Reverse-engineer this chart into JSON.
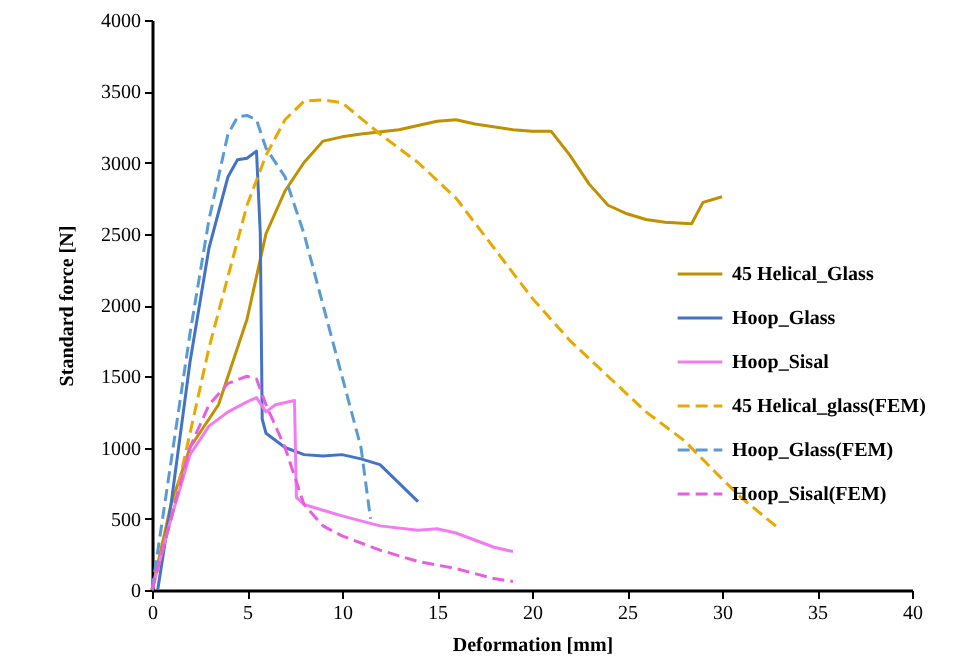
{
  "chart_data": {
    "type": "line",
    "xlabel": "Deformation [mm]",
    "ylabel": "Standard force [N]",
    "xlim": [
      0,
      40
    ],
    "xticks": [
      0,
      5,
      10,
      15,
      20,
      25,
      30,
      35,
      40
    ],
    "ylim": [
      0,
      4000
    ],
    "yticks": [
      0,
      500,
      1000,
      1500,
      2000,
      2500,
      3000,
      3500,
      4000
    ],
    "grid": false,
    "legend": "right",
    "series": [
      {
        "name": "45 Helical_Glass",
        "color": "#bf9000",
        "line_style": "solid",
        "x": [
          0,
          1,
          2,
          3,
          3.5,
          4,
          5,
          5.5,
          6,
          7,
          8,
          9,
          10,
          11,
          13,
          15,
          16,
          17,
          19,
          20,
          21,
          22,
          23,
          24,
          25,
          26,
          27,
          28.4,
          29,
          30
        ],
        "values": [
          0,
          600,
          1000,
          1200,
          1300,
          1500,
          1900,
          2200,
          2500,
          2800,
          3000,
          3150,
          3180,
          3200,
          3230,
          3290,
          3300,
          3270,
          3230,
          3220,
          3220,
          3050,
          2850,
          2700,
          2640,
          2600,
          2580,
          2570,
          2720,
          2760
        ]
      },
      {
        "name": "Hoop_Glass",
        "color": "#4472c4",
        "line_style": "solid",
        "x": [
          0.3,
          1,
          2,
          3,
          4,
          4.5,
          5,
          5.5,
          5.7,
          5.8,
          6,
          7,
          8,
          9,
          10,
          11,
          12,
          13,
          14
        ],
        "values": [
          0,
          600,
          1600,
          2400,
          2900,
          3020,
          3030,
          3080,
          2500,
          1200,
          1100,
          1000,
          950,
          940,
          950,
          920,
          880,
          750,
          620
        ]
      },
      {
        "name": "Hoop_Sisal",
        "color": "#f07cf0",
        "line_style": "solid",
        "x": [
          0,
          1,
          2,
          3,
          4,
          5,
          5.5,
          6,
          6.5,
          7.5,
          7.6,
          8,
          9,
          10,
          12,
          14,
          15,
          16,
          18,
          19
        ],
        "values": [
          0,
          500,
          950,
          1150,
          1250,
          1320,
          1350,
          1250,
          1300,
          1330,
          650,
          600,
          560,
          520,
          450,
          420,
          430,
          400,
          300,
          270
        ]
      },
      {
        "name": "45 Helical_glass(FEM)",
        "color": "#e8a800",
        "line_style": "dashed",
        "x": [
          0,
          1,
          2,
          3,
          4,
          5,
          6,
          7,
          8,
          9,
          10,
          12,
          14,
          16,
          18,
          20,
          22,
          24,
          26,
          28,
          30,
          31,
          33
        ],
        "values": [
          0,
          500,
          1100,
          1700,
          2200,
          2700,
          3050,
          3300,
          3430,
          3440,
          3420,
          3200,
          3000,
          2750,
          2400,
          2050,
          1750,
          1500,
          1250,
          1050,
          780,
          650,
          430
        ]
      },
      {
        "name": "Hoop_Glass(FEM)",
        "color": "#5b9bd5",
        "line_style": "dashed",
        "x": [
          0,
          1,
          2,
          3,
          4,
          4.5,
          5,
          5.5,
          6,
          7,
          8,
          9,
          10,
          11,
          11.3,
          11.5
        ],
        "values": [
          0,
          900,
          1800,
          2600,
          3200,
          3320,
          3330,
          3300,
          3100,
          2900,
          2500,
          2000,
          1500,
          1000,
          700,
          500
        ]
      },
      {
        "name": "Hoop_Sisal(FEM)",
        "color": "#e75fe0",
        "line_style": "dashed",
        "x": [
          0,
          1,
          2,
          3,
          4,
          5,
          5.5,
          6,
          7,
          8,
          9,
          10,
          12,
          14,
          16,
          18,
          19
        ],
        "values": [
          0,
          500,
          1000,
          1300,
          1450,
          1500,
          1480,
          1300,
          1000,
          600,
          450,
          380,
          280,
          200,
          150,
          80,
          60
        ]
      }
    ]
  }
}
